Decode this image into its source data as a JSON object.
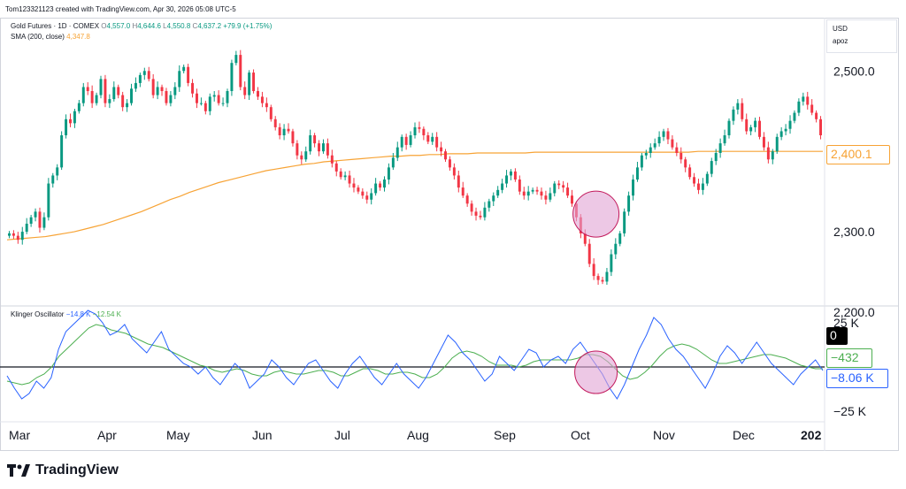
{
  "header": {
    "title": "Tom123321123 created with TradingView.com, Apr 30, 2026 05:08 UTC-5"
  },
  "legend_main": {
    "symbol": "Gold Futures · 1D · COMEX",
    "o_label": "O",
    "o_val": "4,557.0",
    "h_label": "H",
    "h_val": "4,644.6",
    "l_label": "L",
    "l_val": "4,550.8",
    "c_label": "C",
    "c_val": "4,637.2",
    "change": "+79.9 (+1.75%)"
  },
  "legend_sma": {
    "label": "SMA (200, close)",
    "value": "4,347.8"
  },
  "legend_osc": {
    "label": "Klinger Oscillator",
    "v1": "−14.8 K",
    "v2": "−12.54 K"
  },
  "currency": {
    "line1": "USD",
    "line2": "apoz"
  },
  "price_tags": {
    "sma": "2,400.1",
    "zero": "0",
    "signal": "−432",
    "kvo": "−8.06 K"
  },
  "footer": {
    "brand": "TradingView"
  },
  "colors": {
    "up": "#089981",
    "down": "#f23645",
    "sma": "#f7a335",
    "kvo": "#2962ff",
    "signal": "#4caf50",
    "circle_fill": "#e1a3d3",
    "circle_stroke": "#c2185b"
  },
  "chart_data": {
    "type": "candlestick",
    "price_axis": {
      "ticks": [
        "2,500.0",
        "2,300.0",
        "2,200.0"
      ],
      "tick_values": [
        2500,
        2300,
        2200
      ],
      "ylim": [
        2200,
        2530
      ]
    },
    "osc_axis": {
      "ticks": [
        "25 K",
        "−25 K"
      ],
      "tick_values": [
        25000,
        -25000
      ],
      "ylim": [
        -30000,
        30000
      ]
    },
    "months": [
      "Mar",
      "Apr",
      "May",
      "Jun",
      "Jul",
      "Aug",
      "Sep",
      "Oct",
      "Nov",
      "Dec",
      "202"
    ],
    "closes": [
      2298,
      2295,
      2290,
      2300,
      2310,
      2318,
      2325,
      2305,
      2318,
      2360,
      2370,
      2380,
      2420,
      2440,
      2435,
      2450,
      2460,
      2480,
      2475,
      2460,
      2470,
      2490,
      2460,
      2465,
      2480,
      2470,
      2455,
      2460,
      2478,
      2485,
      2495,
      2500,
      2490,
      2470,
      2480,
      2475,
      2460,
      2470,
      2480,
      2500,
      2505,
      2485,
      2472,
      2460,
      2460,
      2450,
      2468,
      2470,
      2460,
      2460,
      2475,
      2510,
      2520,
      2480,
      2470,
      2498,
      2475,
      2468,
      2460,
      2455,
      2440,
      2430,
      2420,
      2428,
      2425,
      2410,
      2395,
      2390,
      2400,
      2420,
      2410,
      2400,
      2410,
      2395,
      2385,
      2375,
      2368,
      2370,
      2360,
      2355,
      2350,
      2345,
      2340,
      2348,
      2360,
      2355,
      2365,
      2380,
      2392,
      2405,
      2418,
      2408,
      2420,
      2430,
      2428,
      2420,
      2412,
      2418,
      2405,
      2400,
      2390,
      2380,
      2370,
      2355,
      2345,
      2335,
      2325,
      2320,
      2318,
      2330,
      2338,
      2345,
      2352,
      2360,
      2370,
      2375,
      2365,
      2350,
      2345,
      2350,
      2352,
      2350,
      2345,
      2340,
      2348,
      2360,
      2358,
      2355,
      2345,
      2335,
      2318,
      2298,
      2285,
      2260,
      2245,
      2240,
      2238,
      2250,
      2272,
      2285,
      2298,
      2325,
      2345,
      2365,
      2380,
      2395,
      2398,
      2405,
      2410,
      2418,
      2425,
      2415,
      2405,
      2398,
      2390,
      2380,
      2368,
      2360,
      2352,
      2360,
      2372,
      2388,
      2398,
      2410,
      2420,
      2438,
      2452,
      2460,
      2440,
      2425,
      2430,
      2438,
      2418,
      2405,
      2390,
      2400,
      2418,
      2425,
      2428,
      2438,
      2448,
      2462,
      2468,
      2458,
      2448,
      2440,
      2420
    ],
    "sma": [
      2290,
      2291,
      2292,
      2293,
      2294,
      2296,
      2298,
      2300,
      2303,
      2306,
      2309,
      2313,
      2317,
      2321,
      2325,
      2330,
      2335,
      2340,
      2344,
      2349,
      2353,
      2357,
      2361,
      2364,
      2367,
      2370,
      2373,
      2376,
      2378,
      2380,
      2382,
      2384,
      2385,
      2387,
      2388,
      2389,
      2390,
      2391,
      2392,
      2393,
      2394,
      2394,
      2395,
      2395,
      2396,
      2396,
      2397,
      2397,
      2397,
      2398,
      2398,
      2398,
      2398,
      2398,
      2398,
      2399,
      2399,
      2399,
      2399,
      2399,
      2399,
      2399,
      2399,
      2399,
      2399,
      2399,
      2399,
      2399,
      2399,
      2399,
      2399,
      2399,
      2400,
      2400,
      2400,
      2400,
      2400,
      2400,
      2400,
      2400,
      2400,
      2400,
      2400,
      2400,
      2400,
      2400
    ],
    "kvo": [
      -5,
      -12,
      -18,
      -15,
      -8,
      -12,
      -6,
      10,
      20,
      24,
      28,
      32,
      30,
      25,
      18,
      20,
      24,
      16,
      12,
      8,
      14,
      20,
      10,
      6,
      2,
      0,
      -4,
      0,
      -6,
      -10,
      -4,
      2,
      -2,
      -12,
      -8,
      -4,
      4,
      0,
      -6,
      -10,
      -4,
      2,
      4,
      -2,
      -8,
      -12,
      -4,
      2,
      6,
      0,
      -6,
      -10,
      -4,
      2,
      -4,
      -8,
      -12,
      -6,
      2,
      10,
      18,
      14,
      8,
      4,
      -2,
      -8,
      -4,
      6,
      2,
      -2,
      4,
      10,
      8,
      0,
      4,
      6,
      2,
      10,
      14,
      8,
      2,
      -4,
      -12,
      -18,
      -10,
      0,
      10,
      18,
      28,
      24,
      16,
      10,
      6,
      0,
      -6,
      -12,
      -4,
      6,
      12,
      8,
      2,
      8,
      14,
      8,
      2,
      -2,
      -6,
      -10,
      -4,
      0,
      4,
      -2
    ],
    "signal": [
      -8,
      -9,
      -10,
      -9,
      -6,
      -4,
      0,
      6,
      10,
      14,
      18,
      22,
      24,
      23,
      21,
      20,
      19,
      17,
      15,
      13,
      12,
      11,
      9,
      7,
      5,
      3,
      1,
      0,
      -2,
      -3,
      -2,
      -1,
      -2,
      -4,
      -5,
      -5,
      -3,
      -2,
      -3,
      -4,
      -4,
      -3,
      -2,
      -2,
      -3,
      -5,
      -5,
      -3,
      -1,
      -1,
      -2,
      -4,
      -4,
      -3,
      -3,
      -4,
      -6,
      -6,
      -4,
      0,
      5,
      8,
      9,
      8,
      6,
      3,
      1,
      1,
      1,
      0,
      1,
      3,
      4,
      4,
      4,
      4,
      4,
      5,
      7,
      7,
      6,
      3,
      -1,
      -5,
      -7,
      -6,
      -3,
      1,
      6,
      10,
      12,
      13,
      12,
      10,
      7,
      4,
      2,
      2,
      3,
      4,
      5,
      6,
      7,
      7,
      6,
      5,
      3,
      1,
      0,
      -1,
      -1
    ],
    "kvo_last": "−8.06 K",
    "signal_last": "−432"
  }
}
